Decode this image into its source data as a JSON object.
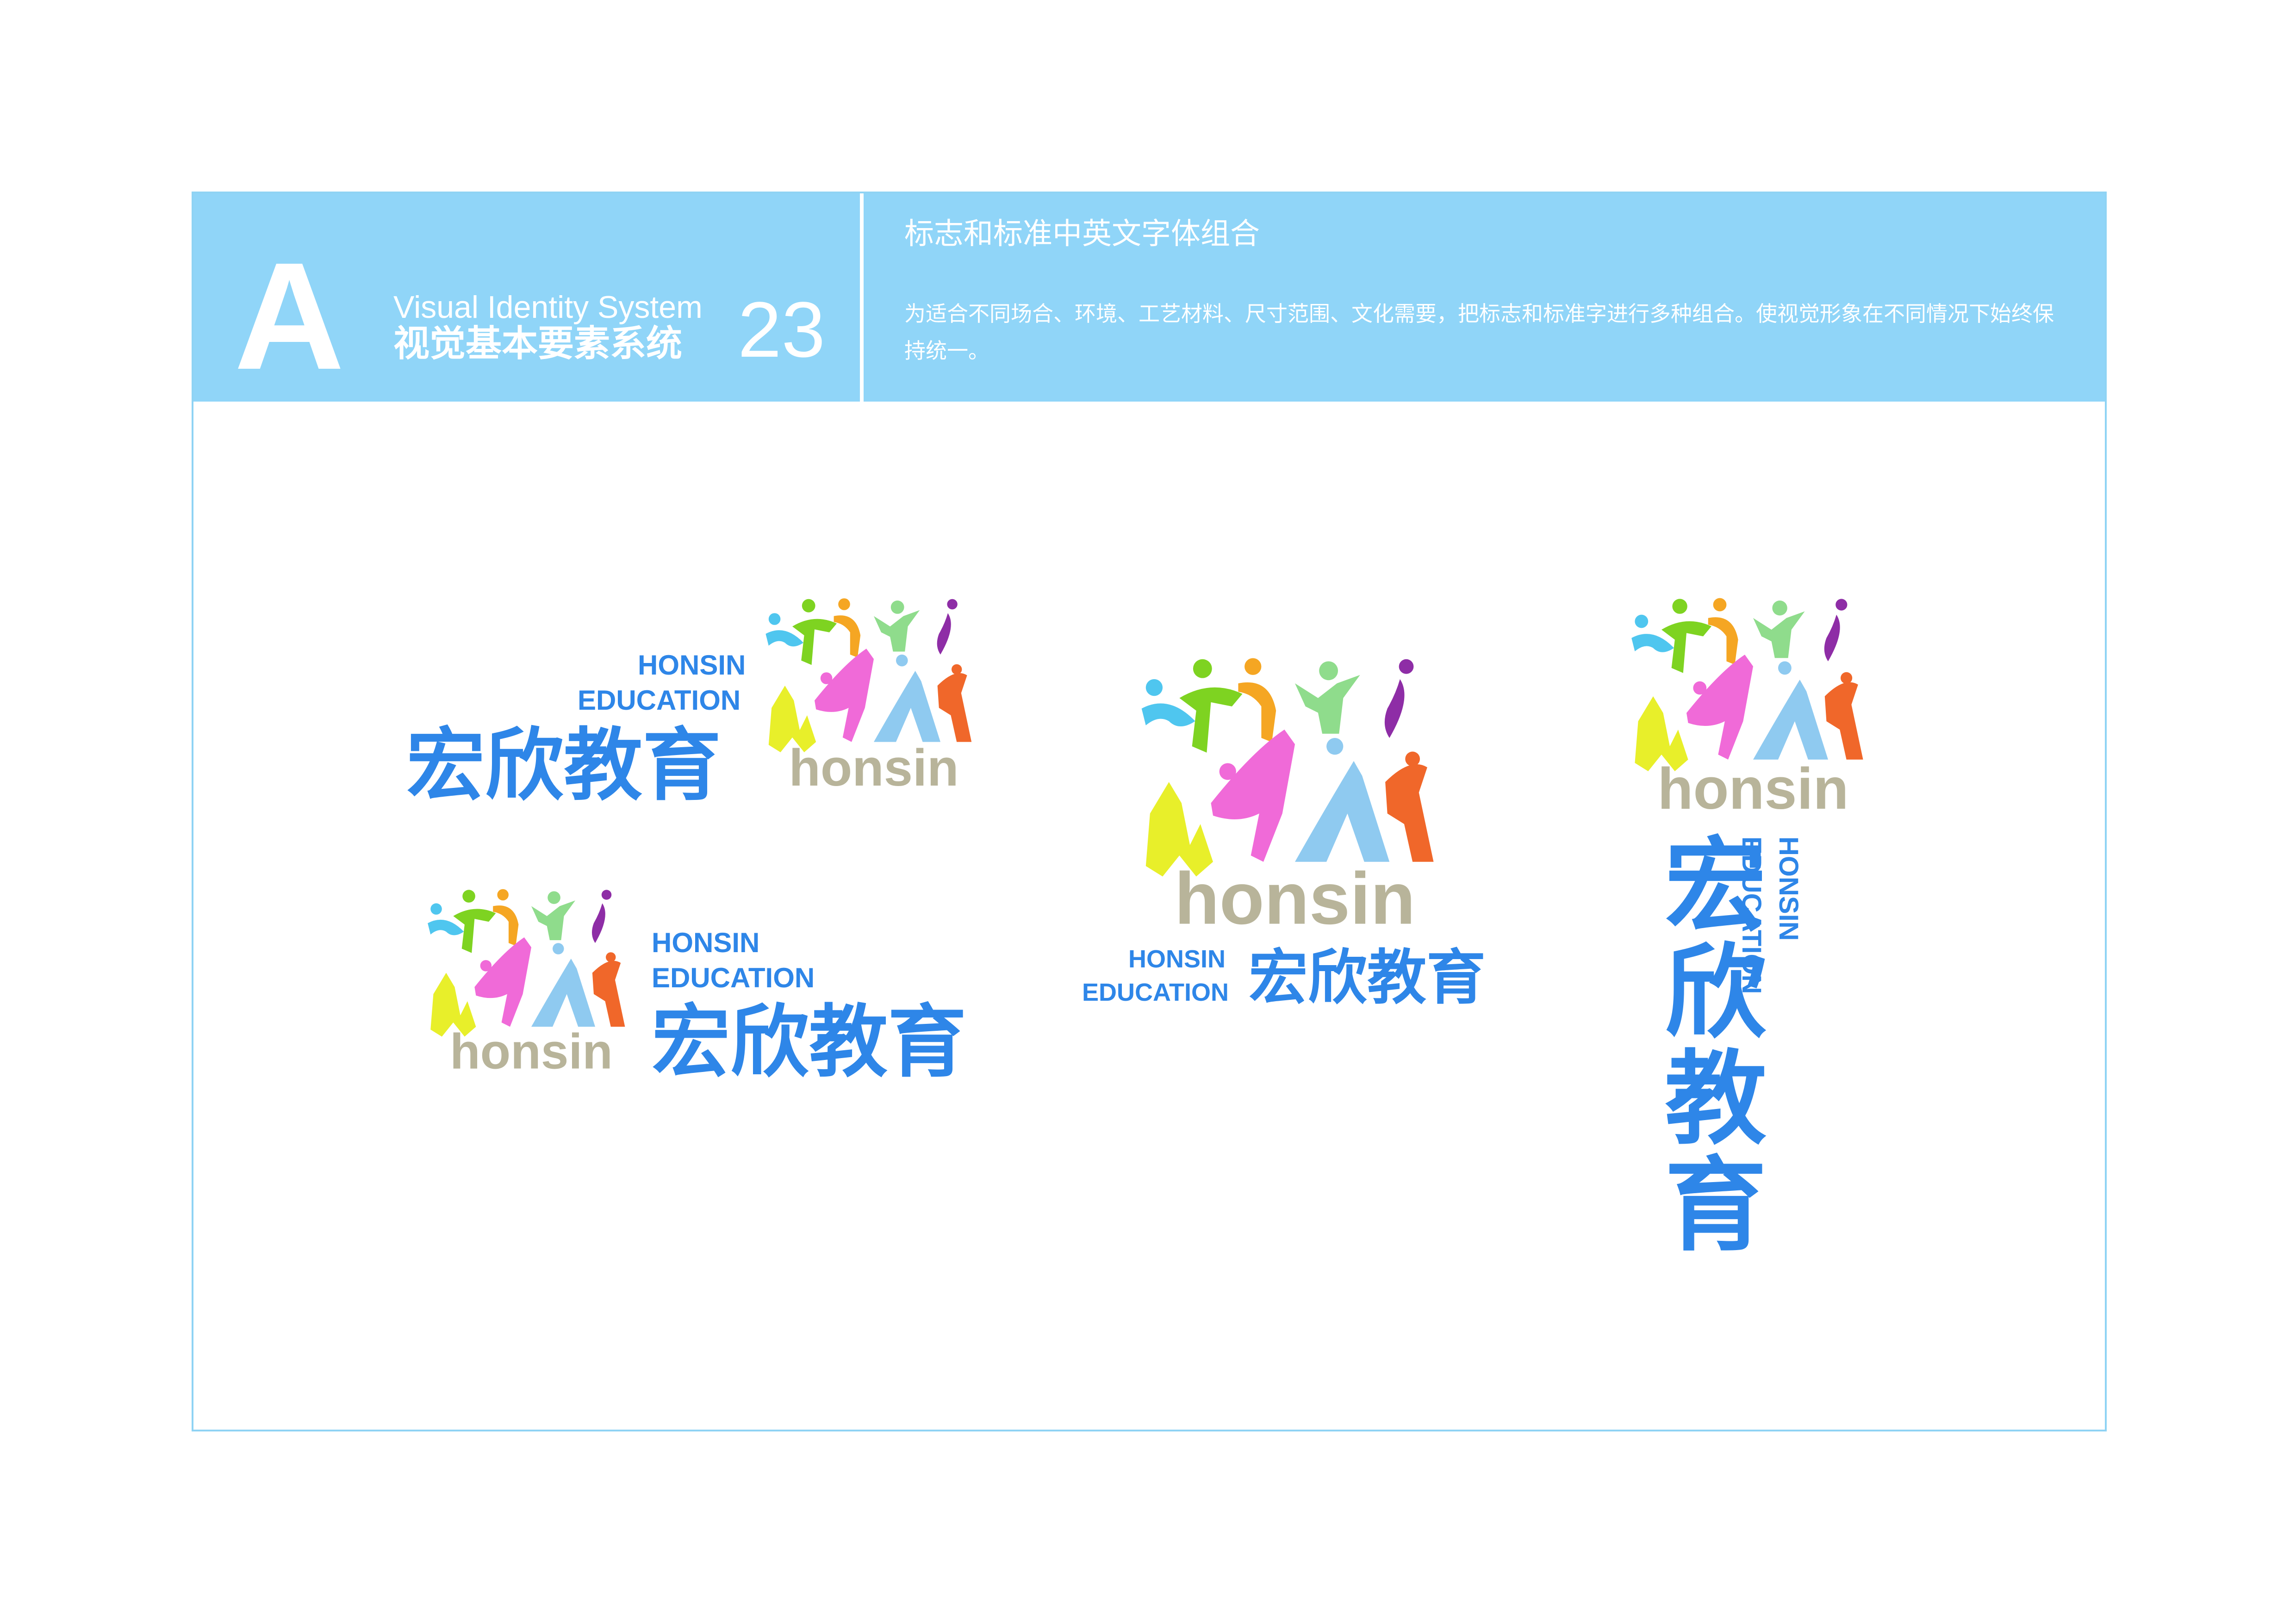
{
  "header": {
    "letter": "A",
    "system_en": "Visual Identity System",
    "system_cn": "视觉基本要素系统",
    "page_number": "23",
    "section_title": "标志和标准中英文字体组合",
    "section_description": "为适合不同场合、环境、工艺材料、尺寸范围、文化需要，把标志和标准字进行多种组合。使视觉形象在不同情况下始终保持统一。"
  },
  "brand": {
    "name_en_line1": "HONSIN",
    "name_en_line2": "EDUCATION",
    "name_cn": "宏欣教育",
    "logo_word": "honsin",
    "colors": {
      "brand_blue": "#2e86e8",
      "header_blue": "#90d5f8",
      "logo_word": "#b8b49a",
      "figure_cyan": "#4fc6ef",
      "figure_green": "#7ed321",
      "figure_orange": "#f5a623",
      "figure_lightgreen": "#8fdc8c",
      "figure_purple": "#8e2da6",
      "figure_pink": "#f06ad8",
      "figure_yellow": "#e8ef2a",
      "figure_skyblue": "#8fcaf0",
      "figure_red": "#f0672a"
    }
  }
}
